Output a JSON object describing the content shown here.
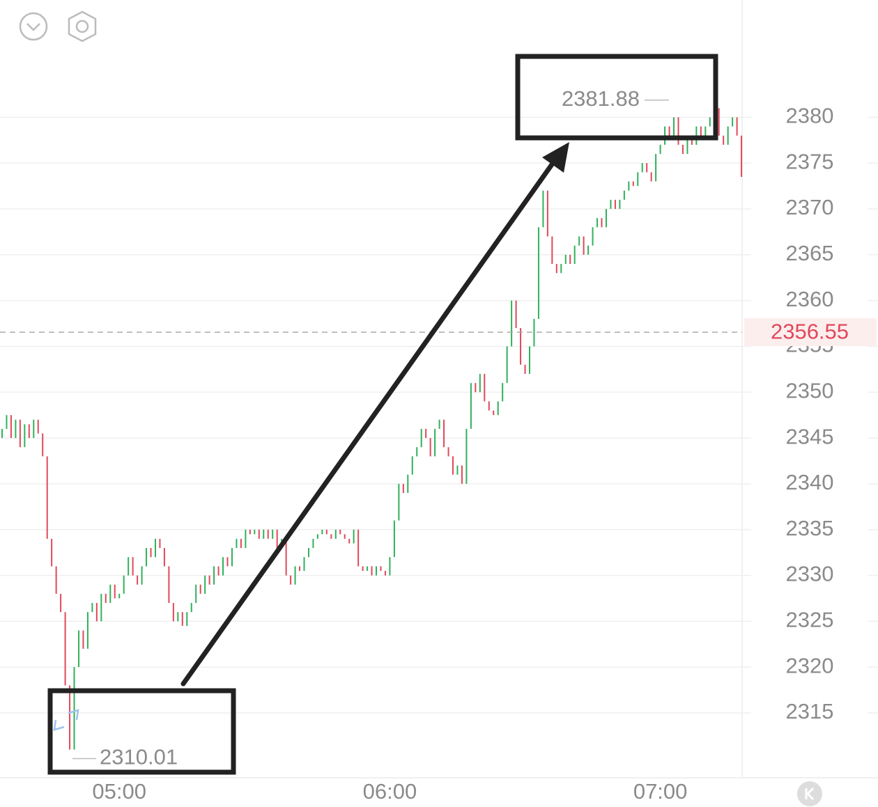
{
  "chart_data": {
    "type": "candlestick",
    "categories": [
      null,
      null,
      null,
      null,
      null,
      null,
      null,
      null,
      null,
      null,
      null,
      null,
      null,
      null,
      null,
      null,
      null,
      null,
      null,
      null,
      null,
      null,
      null,
      null,
      null,
      null,
      "05:00",
      null,
      null,
      null,
      null,
      null,
      null,
      null,
      null,
      null,
      null,
      null,
      null,
      null,
      null,
      null,
      null,
      null,
      null,
      null,
      null,
      null,
      null,
      null,
      null,
      null,
      null,
      null,
      null,
      null,
      null,
      null,
      null,
      null,
      null,
      null,
      null,
      null,
      null,
      null,
      null,
      null,
      null,
      null,
      null,
      null,
      null,
      null,
      null,
      null,
      null,
      null,
      null,
      null,
      null,
      null,
      null,
      null,
      null,
      null,
      "06:00",
      null,
      null,
      null,
      null,
      null,
      null,
      null,
      null,
      null,
      null,
      null,
      null,
      null,
      null,
      null,
      null,
      null,
      null,
      null,
      null,
      null,
      null,
      null,
      null,
      null,
      null,
      null,
      null,
      null,
      null,
      null,
      null,
      null,
      null,
      null,
      null,
      null,
      null,
      null,
      null,
      null,
      null,
      null,
      null,
      null,
      null,
      null,
      null,
      null,
      null,
      null,
      null,
      null,
      null,
      null,
      null,
      null,
      null,
      null,
      "07:00",
      null,
      null,
      null,
      null,
      null,
      null,
      null,
      null,
      null,
      null,
      null,
      null,
      null,
      null,
      null,
      null,
      null,
      null
    ],
    "open": [
      2345,
      2346,
      2347.5,
      2345,
      2347,
      2344,
      2346.5,
      2345,
      2347,
      2345.5,
      2343,
      2334,
      2331,
      2328,
      2326,
      2318,
      2311,
      2320,
      2324,
      2322,
      2326,
      2327,
      2325,
      2328,
      2327,
      2329,
      2327.5,
      2328,
      2330,
      2332,
      2330,
      2329,
      2331,
      2333,
      2332,
      2334,
      2333,
      2331,
      2327,
      2325,
      2326,
      2324.5,
      2326,
      2327,
      2329,
      2328,
      2330,
      2329,
      2331,
      2330,
      2332,
      2331,
      2333,
      2334,
      2333,
      2335,
      2334.5,
      2335,
      2334,
      2335,
      2334,
      2335,
      2333,
      2334,
      2330,
      2329,
      2331,
      2330.5,
      2332,
      2333,
      2334,
      2334.5,
      2335,
      2334.5,
      2334,
      2335,
      2334.5,
      2334,
      2333.5,
      2335,
      2331,
      2330.5,
      2331,
      2330,
      2331,
      2330.5,
      2330,
      2332,
      2336,
      2340,
      2339,
      2341,
      2343,
      2344,
      2346,
      2345,
      2343,
      2346,
      2347,
      2344,
      2343,
      2341,
      2342,
      2340,
      2346,
      2351,
      2350,
      2352,
      2349,
      2348,
      2347.5,
      2349,
      2351,
      2355,
      2360,
      2357,
      2353,
      2352,
      2355,
      2358,
      2368,
      2372,
      2367,
      2364,
      2363,
      2364,
      2365,
      2364,
      2366,
      2367,
      2365,
      2366,
      2368,
      2369,
      2368,
      2370,
      2371,
      2370,
      2371,
      2372,
      2373,
      2372.5,
      2374,
      2375,
      2374,
      2373,
      2376,
      2377,
      2379,
      2378,
      2380,
      2377,
      2376,
      2378,
      2377,
      2379,
      2378,
      2379,
      2380,
      2381,
      2378,
      2377,
      2379,
      2380,
      2378
    ],
    "close": [
      2346,
      2347.5,
      2345,
      2347,
      2344,
      2346.5,
      2345,
      2347,
      2345.5,
      2343,
      2334,
      2331,
      2328,
      2326,
      2318,
      2311,
      2320,
      2324,
      2322,
      2326,
      2327,
      2325,
      2328,
      2327,
      2329,
      2327.5,
      2328,
      2330,
      2332,
      2330,
      2329,
      2331,
      2333,
      2332,
      2334,
      2333,
      2331,
      2327,
      2325,
      2326,
      2324.5,
      2326,
      2327,
      2329,
      2328,
      2330,
      2329,
      2331,
      2330,
      2332,
      2331,
      2333,
      2334,
      2333,
      2335,
      2334.5,
      2335,
      2334,
      2335,
      2334,
      2335,
      2333,
      2334,
      2330,
      2329,
      2331,
      2330.5,
      2332,
      2333,
      2334,
      2334.5,
      2335,
      2334.5,
      2334,
      2335,
      2334.5,
      2334,
      2333.5,
      2335,
      2331,
      2330.5,
      2331,
      2330,
      2331,
      2330.5,
      2330,
      2332,
      2336,
      2340,
      2339,
      2341,
      2343,
      2344,
      2346,
      2345,
      2343,
      2346,
      2347,
      2344,
      2343,
      2341,
      2342,
      2340,
      2346,
      2351,
      2350,
      2352,
      2349,
      2348,
      2347.5,
      2349,
      2351,
      2355,
      2360,
      2357,
      2353,
      2352,
      2355,
      2358,
      2368,
      2372,
      2367,
      2364,
      2363,
      2364,
      2365,
      2364,
      2366,
      2367,
      2365,
      2366,
      2368,
      2369,
      2368,
      2370,
      2371,
      2370,
      2371,
      2372,
      2373,
      2372.5,
      2374,
      2375,
      2374,
      2373,
      2376,
      2377,
      2379,
      2378,
      2380,
      2377,
      2376,
      2378,
      2377,
      2379,
      2378,
      2379,
      2380,
      2381,
      2378,
      2377,
      2379,
      2380,
      2378,
      2373.5
    ],
    "up_color": "#2fb15a",
    "down_color": "#e0485a",
    "ylim": [
      2308,
      2392.8
    ],
    "yticks": [
      2315,
      2320,
      2325,
      2330,
      2335,
      2340,
      2345,
      2350,
      2355,
      2360,
      2365,
      2370,
      2375,
      2380
    ],
    "grid": true,
    "current_price": 2356.55,
    "high_annotation": 2381.88,
    "low_annotation": 2310.01
  }
}
